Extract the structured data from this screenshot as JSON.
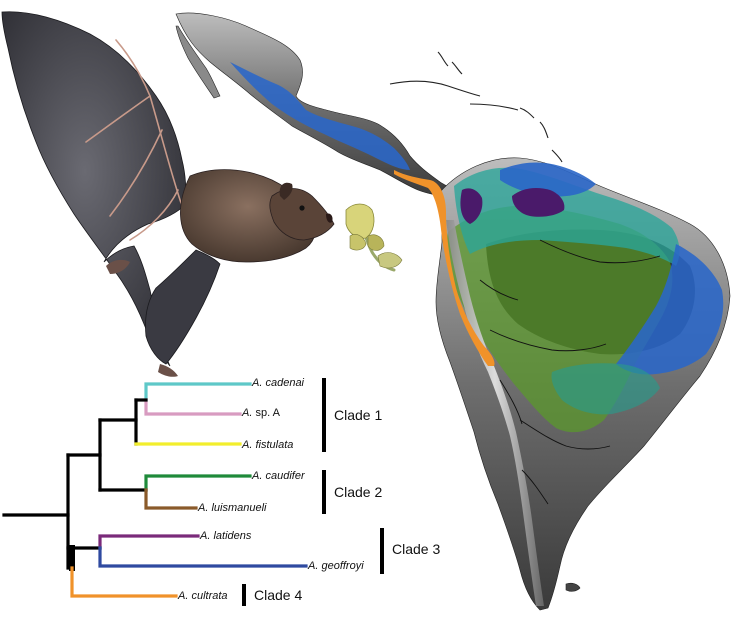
{
  "figure": {
    "taxa": [
      {
        "id": "cadenai",
        "prefix": "A.",
        "epithet": "cadenai",
        "color": "#5ec8c8"
      },
      {
        "id": "spA",
        "prefix": "A.",
        "epithet": "sp. A",
        "color": "#d89bc0"
      },
      {
        "id": "fistulata",
        "prefix": "A.",
        "epithet": "fistulata",
        "color": "#f2ee2c"
      },
      {
        "id": "caudifer",
        "prefix": "A.",
        "epithet": "caudifer",
        "color": "#1f8a3a"
      },
      {
        "id": "luismanueli",
        "prefix": "A.",
        "epithet": "luismanueli",
        "color": "#8a5a2a"
      },
      {
        "id": "latidens",
        "prefix": "A.",
        "epithet": "latidens",
        "color": "#7a2a7a"
      },
      {
        "id": "geoffroyi",
        "prefix": "A.",
        "epithet": "geoffroyi",
        "color": "#2f4aa0"
      },
      {
        "id": "cultrata",
        "prefix": "A.",
        "epithet": "cultrata",
        "color": "#f0922a"
      }
    ],
    "clades": [
      {
        "id": "clade1",
        "label": "Clade 1"
      },
      {
        "id": "clade2",
        "label": "Clade 2"
      },
      {
        "id": "clade3",
        "label": "Clade 3"
      },
      {
        "id": "clade4",
        "label": "Clade 4"
      }
    ],
    "range_colors": {
      "blue": "#2a66c8",
      "teal": "#2aa59a",
      "green": "#5a9a2a",
      "purple": "#4a1a6a",
      "orange": "#f0922a"
    }
  }
}
